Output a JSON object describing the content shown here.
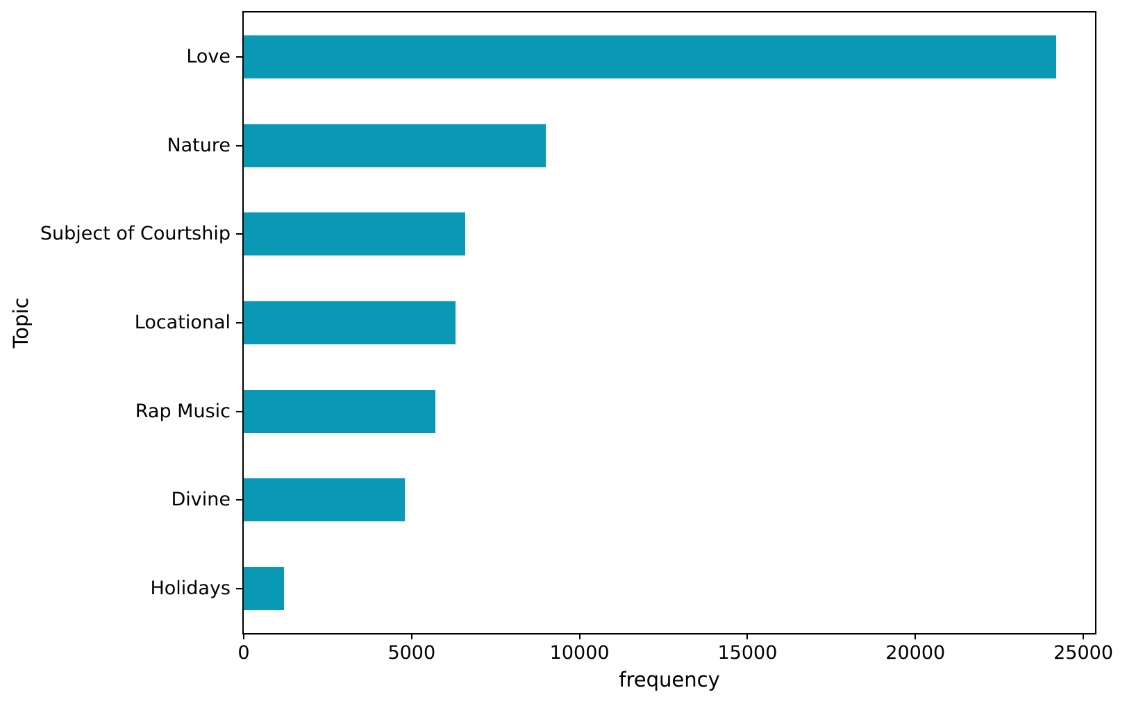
{
  "chart_data": {
    "type": "bar",
    "orientation": "horizontal",
    "title": "",
    "xlabel": "frequency",
    "ylabel": "Topic",
    "categories": [
      "Love",
      "Nature",
      "Subject of Courtship",
      "Locational",
      "Rap Music",
      "Divine",
      "Holidays"
    ],
    "values": [
      24200,
      9000,
      6600,
      6300,
      5700,
      4800,
      1200
    ],
    "xticks": [
      0,
      5000,
      10000,
      15000,
      20000,
      25000
    ],
    "xlim": [
      0,
      25350
    ],
    "bar_color": "#0a99b5",
    "spine_color": "#000000",
    "grid": false,
    "legend": false
  }
}
